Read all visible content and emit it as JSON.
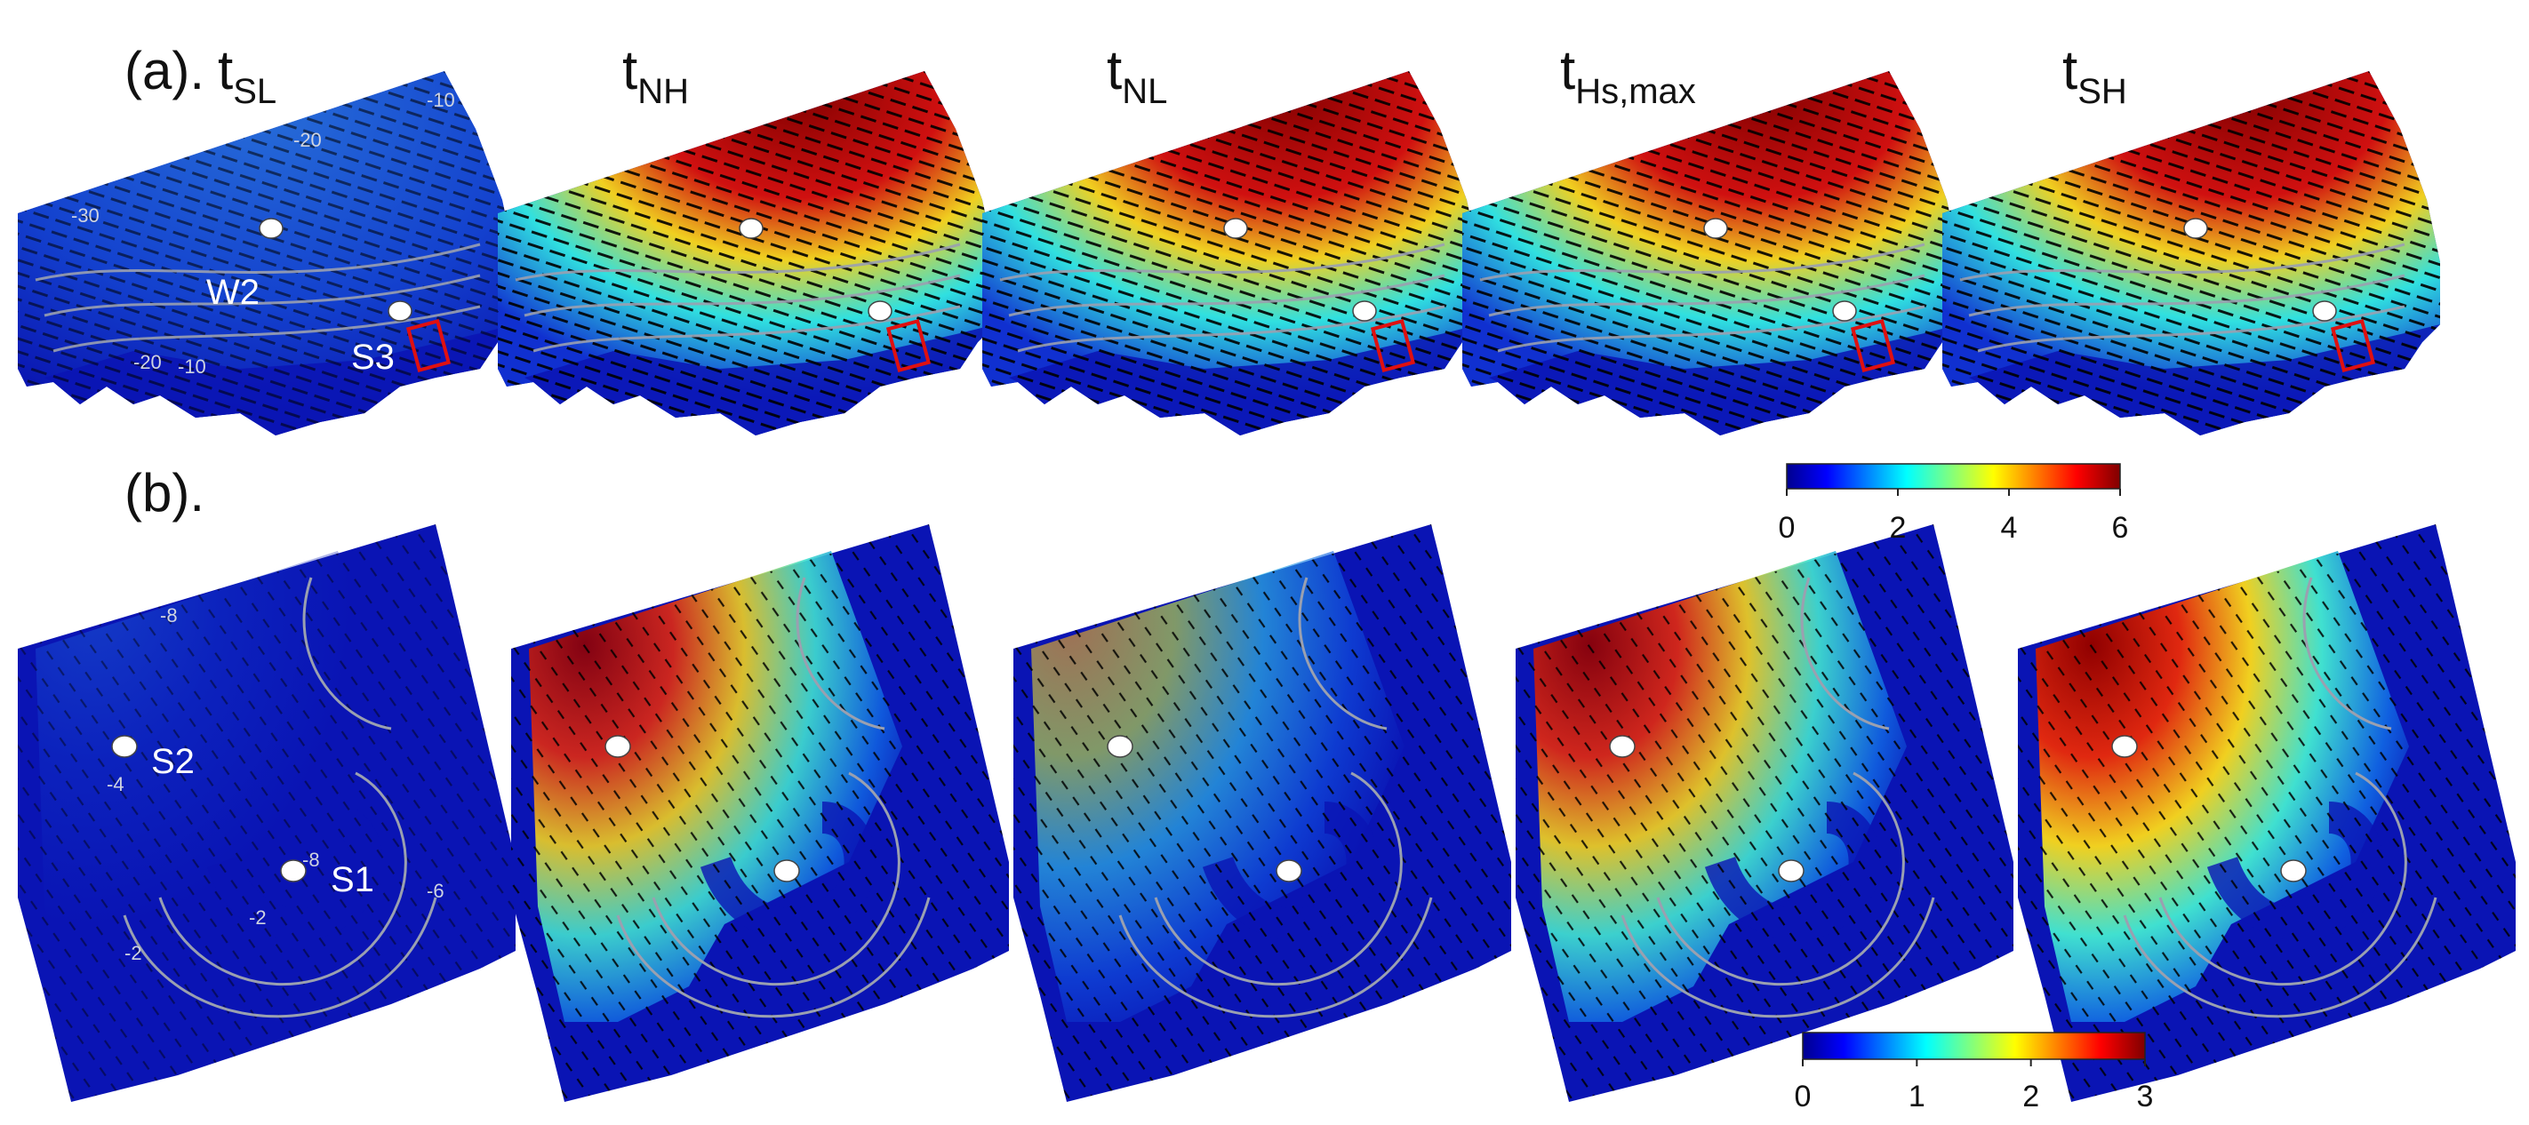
{
  "panels": {
    "a_label": "(a).",
    "b_label": "(b)."
  },
  "columns": [
    {
      "main": "t",
      "sub": "SL"
    },
    {
      "main": "t",
      "sub": "NH"
    },
    {
      "main": "t",
      "sub": "NL"
    },
    {
      "main": "t",
      "sub": "Hs,max"
    },
    {
      "main": "t",
      "sub": "SH"
    }
  ],
  "stations": {
    "row_a": [
      "W2",
      "S3"
    ],
    "row_b": [
      "S2",
      "S1"
    ]
  },
  "colorbars": [
    {
      "ticks": [
        "0",
        "2",
        "4",
        "6"
      ],
      "min": 0,
      "max": 6
    },
    {
      "ticks": [
        "0",
        "1",
        "2",
        "3"
      ],
      "min": 0,
      "max": 3
    }
  ],
  "contour_labels": [
    "-30",
    "-20",
    "-10",
    "-20",
    "-10",
    "-20",
    "-30",
    "-10",
    "-20",
    "-10",
    "-8",
    "-4",
    "-2",
    "-8",
    "-6",
    "-2",
    "-4",
    "-6",
    "-2",
    "-4",
    "-6"
  ],
  "colors": {
    "low": "#0a14b4",
    "mid": "#3ad6e6",
    "high": "#8a0a0a",
    "station_fill": "#ffffff",
    "target_box": "#e01010",
    "contour": "#9aa0b0"
  },
  "chart_data": [
    {
      "type": "heatmap",
      "panel": "(a).",
      "description_of_fields": "colour = wave height, black lines/arrows = wave direction",
      "maps": [
        {
          "title": "tSL",
          "intensity": 0.25
        },
        {
          "title": "tNH",
          "intensity": 0.78
        },
        {
          "title": "tNL",
          "intensity": 0.82
        },
        {
          "title": "tHs,max",
          "intensity": 0.9
        },
        {
          "title": "tSH",
          "intensity": 0.72
        }
      ],
      "colorbar": {
        "range": [
          0,
          6
        ],
        "ticks": [
          0,
          2,
          4,
          6
        ]
      }
    },
    {
      "type": "heatmap",
      "panel": "(b).",
      "maps": [
        {
          "title": "tSL",
          "intensity": 0.12
        },
        {
          "title": "tNH",
          "intensity": 0.7
        },
        {
          "title": "tNL",
          "intensity": 0.45
        },
        {
          "title": "tHs,max",
          "intensity": 0.72
        },
        {
          "title": "tSH",
          "intensity": 0.8
        }
      ],
      "colorbar": {
        "range": [
          0,
          3
        ],
        "ticks": [
          0,
          1,
          2,
          3
        ]
      }
    }
  ]
}
